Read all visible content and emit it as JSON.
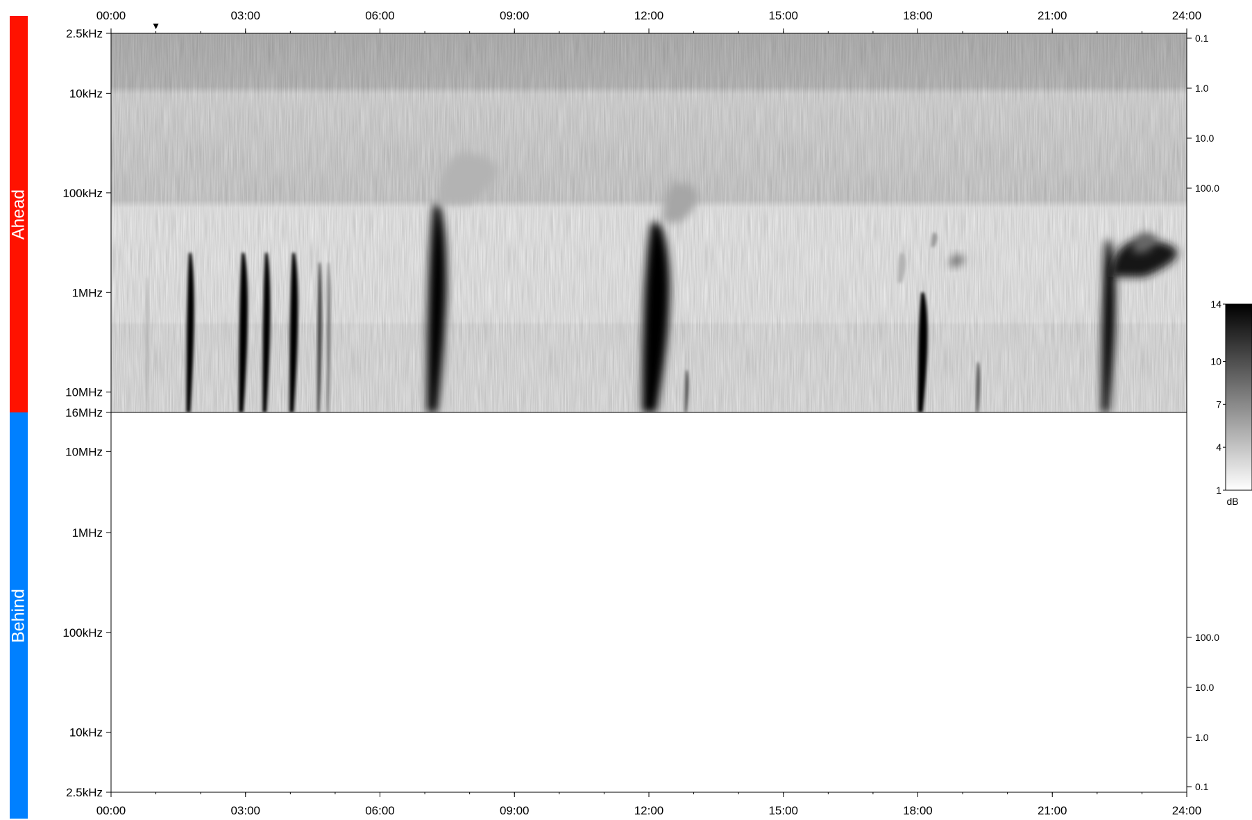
{
  "panels": {
    "ahead": {
      "label": "Ahead",
      "color": "#ff1200"
    },
    "behind": {
      "label": "Behind",
      "color": "#0080ff"
    }
  },
  "colorbar": {
    "unit": "dB",
    "ticks": [
      "14",
      "10",
      "7",
      "4",
      "1"
    ],
    "range": [
      1,
      14
    ]
  },
  "chart_data": [
    {
      "type": "heatmap",
      "panel": "Ahead",
      "x_axis": {
        "ticks": [
          "00:00",
          "03:00",
          "06:00",
          "09:00",
          "12:00",
          "15:00",
          "18:00",
          "21:00",
          "24:00"
        ],
        "range_hours": [
          0,
          24
        ]
      },
      "y_axis_left": {
        "ticks": [
          "2.5kHz",
          "10kHz",
          "100kHz",
          "1MHz",
          "10MHz",
          "16MHz"
        ],
        "scale": "log",
        "direction": "frequency increasing downward"
      },
      "y_axis_right": {
        "ticks": [
          "0.1",
          "1.0",
          "10.0",
          "100.0"
        ]
      },
      "marker": {
        "time_hours": 1.0,
        "symbol": "v"
      },
      "bursts": [
        {
          "start_hours": 0.78,
          "end_hours": 0.84,
          "f_top_hz": 700000,
          "f_bottom_hz": 16000000,
          "intensity": 0.35
        },
        {
          "start_hours": 1.68,
          "end_hours": 1.88,
          "f_top_hz": 400000,
          "f_bottom_hz": 16000000,
          "intensity": 1.0
        },
        {
          "start_hours": 2.85,
          "end_hours": 3.08,
          "f_top_hz": 400000,
          "f_bottom_hz": 16000000,
          "intensity": 1.0
        },
        {
          "start_hours": 3.38,
          "end_hours": 3.58,
          "f_top_hz": 400000,
          "f_bottom_hz": 16000000,
          "intensity": 1.0
        },
        {
          "start_hours": 3.98,
          "end_hours": 4.2,
          "f_top_hz": 400000,
          "f_bottom_hz": 16000000,
          "intensity": 1.0
        },
        {
          "start_hours": 4.6,
          "end_hours": 4.72,
          "f_top_hz": 500000,
          "f_bottom_hz": 16000000,
          "intensity": 0.75
        },
        {
          "start_hours": 4.82,
          "end_hours": 4.9,
          "f_top_hz": 500000,
          "f_bottom_hz": 16000000,
          "intensity": 0.6
        },
        {
          "start_hours": 7.05,
          "end_hours": 7.55,
          "f_top_hz": 130000,
          "f_bottom_hz": 16000000,
          "intensity": 1.0
        },
        {
          "start_hours": 7.3,
          "end_hours": 8.8,
          "f_top_hz": 40000,
          "f_bottom_hz": 130000,
          "intensity": 0.3
        },
        {
          "start_hours": 11.85,
          "end_hours": 12.55,
          "f_top_hz": 200000,
          "f_bottom_hz": 16000000,
          "intensity": 1.0
        },
        {
          "start_hours": 12.3,
          "end_hours": 13.2,
          "f_top_hz": 80000,
          "f_bottom_hz": 200000,
          "intensity": 0.35
        },
        {
          "start_hours": 12.8,
          "end_hours": 12.9,
          "f_top_hz": 6000000,
          "f_bottom_hz": 16000000,
          "intensity": 0.7
        },
        {
          "start_hours": 17.55,
          "end_hours": 17.75,
          "f_top_hz": 400000,
          "f_bottom_hz": 800000,
          "intensity": 0.3
        },
        {
          "start_hours": 18.0,
          "end_hours": 18.25,
          "f_top_hz": 1000000,
          "f_bottom_hz": 16000000,
          "intensity": 1.0
        },
        {
          "start_hours": 18.3,
          "end_hours": 18.45,
          "f_top_hz": 250000,
          "f_bottom_hz": 350000,
          "intensity": 0.4
        },
        {
          "start_hours": 18.7,
          "end_hours": 19.1,
          "f_top_hz": 420000,
          "f_bottom_hz": 550000,
          "intensity": 0.55
        },
        {
          "start_hours": 19.3,
          "end_hours": 19.4,
          "f_top_hz": 5000000,
          "f_bottom_hz": 16000000,
          "intensity": 0.7
        },
        {
          "start_hours": 22.1,
          "end_hours": 22.45,
          "f_top_hz": 300000,
          "f_bottom_hz": 16000000,
          "intensity": 1.0
        },
        {
          "start_hours": 22.3,
          "end_hours": 24.0,
          "f_top_hz": 300000,
          "f_bottom_hz": 700000,
          "intensity": 0.9
        },
        {
          "start_hours": 22.8,
          "end_hours": 23.4,
          "f_top_hz": 250000,
          "f_bottom_hz": 400000,
          "intensity": 0.6
        }
      ]
    },
    {
      "type": "heatmap",
      "panel": "Behind",
      "x_axis": {
        "ticks": [
          "00:00",
          "03:00",
          "06:00",
          "09:00",
          "12:00",
          "15:00",
          "18:00",
          "21:00",
          "24:00"
        ],
        "range_hours": [
          0,
          24
        ]
      },
      "y_axis_left": {
        "ticks": [
          "10MHz",
          "1MHz",
          "100kHz",
          "10kHz",
          "2.5kHz"
        ],
        "scale": "log",
        "direction": "frequency decreasing downward"
      },
      "y_axis_right": {
        "ticks": [
          "100.0",
          "10.0",
          "1.0",
          "0.1"
        ]
      },
      "bursts": []
    }
  ]
}
